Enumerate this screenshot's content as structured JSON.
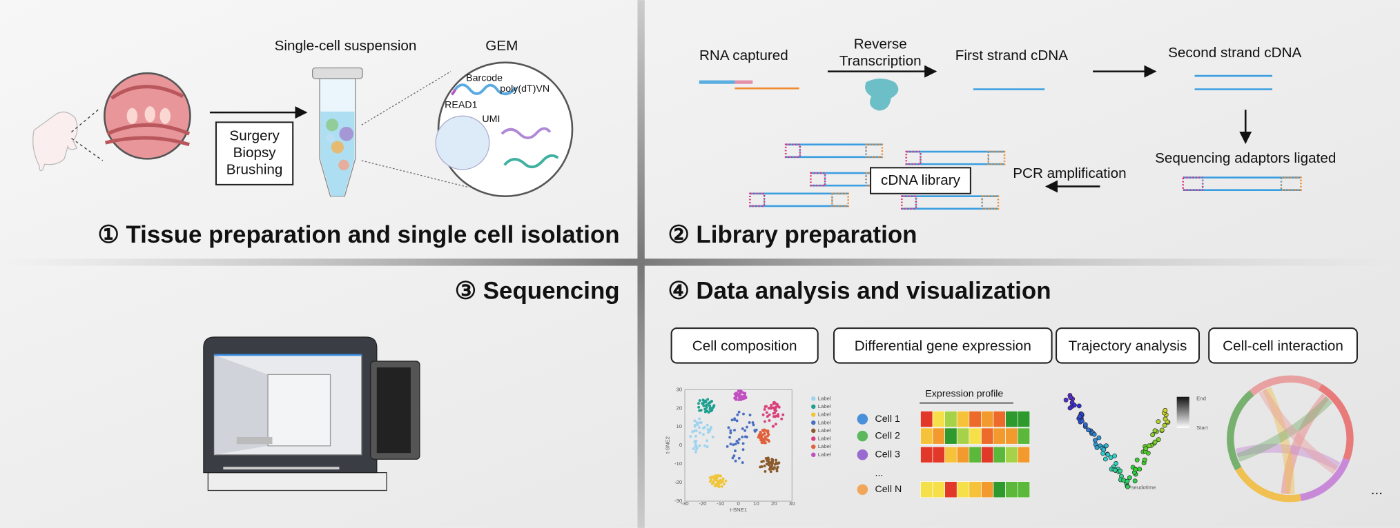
{
  "panel1": {
    "title": "① Tissue preparation and single cell isolation",
    "suspension": "Single-cell suspension",
    "gem": "GEM",
    "methods": [
      "Surgery",
      "Biopsy",
      "Brushing"
    ],
    "gem_parts": [
      "Barcode",
      "poly(dT)VN",
      "READ1",
      "UMI"
    ]
  },
  "panel2": {
    "title": "② Library preparation",
    "rna": "RNA captured",
    "rt": [
      "Reverse",
      "Transcription"
    ],
    "first": "First strand cDNA",
    "second": "Second strand cDNA",
    "adaptors": "Sequencing adaptors ligated",
    "pcr": "PCR amplification",
    "library": "cDNA library"
  },
  "panel3": {
    "title": "③ Sequencing"
  },
  "panel4": {
    "title": "④ Data analysis and visualization",
    "analyses": [
      "Cell composition",
      "Differential gene expression",
      "Trajectory analysis",
      "Cell-cell interaction"
    ],
    "tsne": {
      "x_label": "t-SNE1",
      "y_label": "t-SNE2",
      "xticks": [
        "-30",
        "-20",
        "-10",
        "0",
        "10",
        "20",
        "30"
      ],
      "yticks": [
        "30",
        "20",
        "10",
        "0",
        "-10",
        "-20",
        "-30"
      ],
      "legend": [
        "Label",
        "Label",
        "Label",
        "Label",
        "Label",
        "Label",
        "Label",
        "Label"
      ]
    },
    "heatmap": {
      "title": "Expression profile",
      "cells": [
        "Cell 1",
        "Cell 2",
        "Cell 3",
        "...",
        "Cell N"
      ]
    },
    "trajectory": {
      "end": "End",
      "start": "Start",
      "axis": "Pseudotime"
    },
    "more": "..."
  }
}
